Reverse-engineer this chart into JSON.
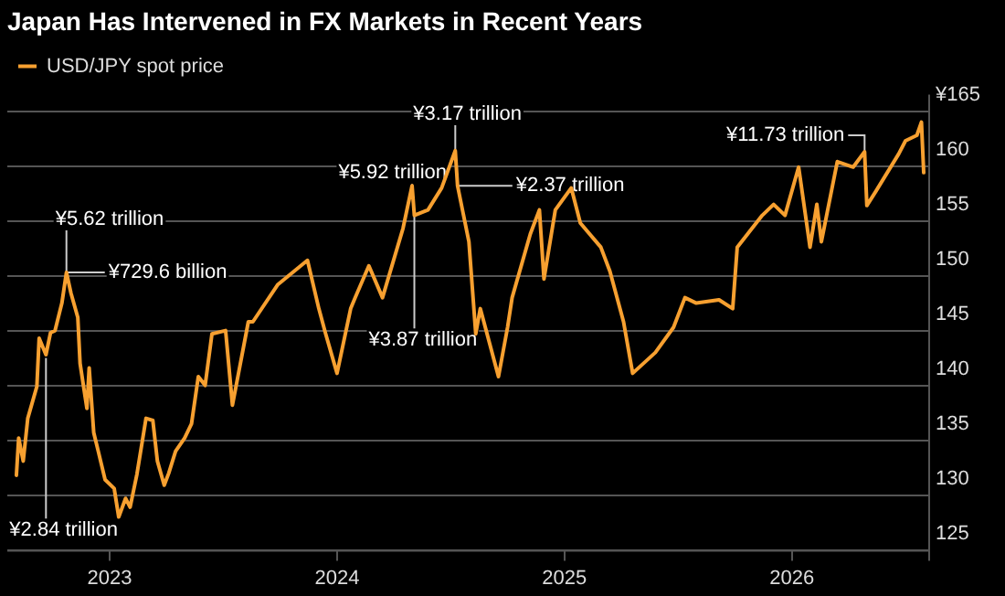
{
  "chart_data": {
    "type": "line",
    "title": "Japan Has Intervened in FX Markets in Recent Years",
    "series": [
      {
        "name": "USD/JPY spot price",
        "color": "#f7a030",
        "x": [
          2022.59,
          2022.6,
          2022.62,
          2022.64,
          2022.68,
          2022.69,
          2022.72,
          2022.74,
          2022.76,
          2022.79,
          2022.81,
          2022.83,
          2022.86,
          2022.87,
          2022.9,
          2022.91,
          2022.93,
          2022.95,
          2022.98,
          2023.02,
          2023.04,
          2023.07,
          2023.09,
          2023.12,
          2023.16,
          2023.19,
          2023.21,
          2023.24,
          2023.26,
          2023.29,
          2023.33,
          2023.36,
          2023.39,
          2023.42,
          2023.45,
          2023.51,
          2023.54,
          2023.61,
          2023.63,
          2023.74,
          2023.87,
          2023.92,
          2023.95,
          2024.0,
          2024.06,
          2024.08,
          2024.14,
          2024.2,
          2024.29,
          2024.33,
          2024.34,
          2024.4,
          2024.46,
          2024.52,
          2024.53,
          2024.58,
          2024.61,
          2024.63,
          2024.71,
          2024.75,
          2024.77,
          2024.85,
          2024.89,
          2024.91,
          2024.96,
          2025.03,
          2025.07,
          2025.16,
          2025.2,
          2025.26,
          2025.3,
          2025.4,
          2025.48,
          2025.53,
          2025.58,
          2025.68,
          2025.74,
          2025.76,
          2025.87,
          2025.92,
          2025.97,
          2026.03,
          2026.08,
          2026.11,
          2026.13,
          2026.2,
          2026.27,
          2026.32,
          2026.33,
          2026.37,
          2026.47,
          2026.5,
          2026.55,
          2026.57,
          2026.58
        ],
        "values": [
          131.8,
          135.2,
          133.1,
          137.0,
          139.9,
          144.3,
          142.8,
          144.8,
          145.0,
          147.5,
          150.3,
          148.4,
          146.2,
          142.0,
          137.9,
          141.6,
          135.7,
          134.0,
          131.4,
          130.6,
          128.0,
          129.7,
          128.9,
          131.9,
          137.0,
          136.8,
          133.1,
          130.9,
          132.0,
          134.0,
          135.2,
          136.5,
          140.8,
          140.0,
          144.7,
          145.0,
          138.2,
          145.8,
          145.8,
          149.2,
          151.4,
          147.0,
          144.7,
          141.1,
          147.0,
          148.0,
          150.9,
          148.0,
          154.3,
          158.2,
          155.5,
          156.0,
          158.0,
          161.4,
          158.2,
          153.1,
          144.7,
          147.0,
          140.8,
          145.3,
          148.0,
          153.8,
          156.0,
          149.7,
          156.0,
          158.0,
          154.8,
          152.6,
          150.4,
          145.8,
          141.1,
          143.0,
          145.3,
          148.0,
          147.5,
          147.8,
          147.0,
          152.6,
          155.5,
          156.5,
          155.5,
          159.9,
          152.6,
          156.5,
          153.1,
          160.4,
          159.9,
          161.3,
          156.4,
          157.7,
          161.1,
          162.3,
          162.8,
          164.0,
          159.4
        ]
      }
    ],
    "xlim": [
      2022.55,
      2026.6
    ],
    "xticks": [
      2023,
      2024,
      2025,
      2026
    ],
    "ylim": [
      125,
      166.5
    ],
    "yticks": [
      125,
      130,
      135,
      140,
      145,
      150,
      155,
      160,
      {
        "value": 165,
        "label": "¥165"
      }
    ],
    "grid": "y",
    "legend": "top left",
    "marker": "none",
    "line_style": "solid",
    "annotations": [
      {
        "text": "¥2.84 trillion",
        "x": 2022.72,
        "y": 142.5
      },
      {
        "text": "¥5.62 trillion",
        "x": 2022.81,
        "y": 150.3
      },
      {
        "text": "¥729.6 billion",
        "x": 2022.81,
        "y": 150.3
      },
      {
        "text": "¥5.92 trillion",
        "x": 2024.33,
        "y": 158.2
      },
      {
        "text": "¥3.87 trillion",
        "x": 2024.34,
        "y": 155.5
      },
      {
        "text": "¥3.17 trillion",
        "x": 2024.52,
        "y": 161.4
      },
      {
        "text": "¥2.37 trillion",
        "x": 2024.53,
        "y": 158.2
      },
      {
        "text": "¥11.73 trillion",
        "x": 2026.32,
        "y": 161.3
      }
    ]
  }
}
